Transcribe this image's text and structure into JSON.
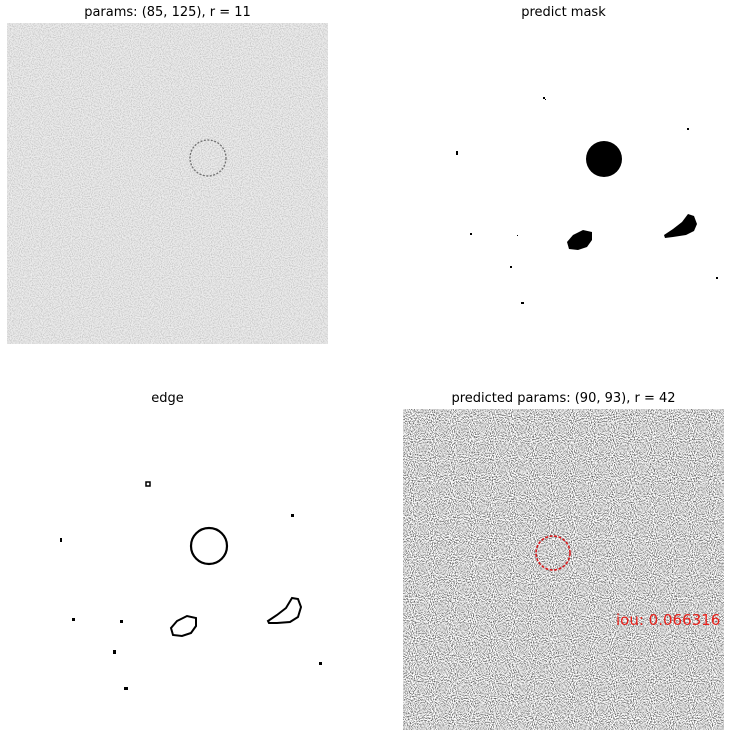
{
  "panels": {
    "input": {
      "title": "params: (85, 125), r = 11"
    },
    "mask": {
      "title": "predict mask"
    },
    "edge": {
      "title": "edge"
    },
    "overlay": {
      "title": "predicted params: (90, 93), r = 42",
      "iou_label": "iou: 0.066316"
    }
  },
  "colors": {
    "overlay_circle": "#d7191c",
    "iou_text": "#e8201a"
  }
}
